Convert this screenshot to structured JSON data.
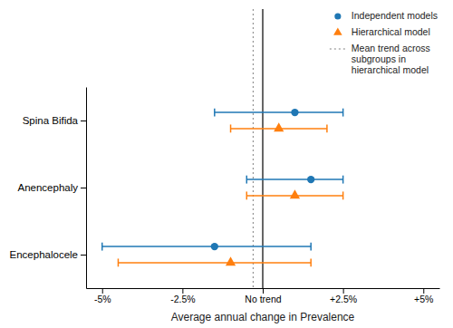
{
  "chart_data": {
    "type": "forest",
    "orientation": "horizontal",
    "categories": [
      "Spina Bifida",
      "Anencephaly",
      "Encephalocele"
    ],
    "series": [
      {
        "name": "Independent models",
        "marker": "circle",
        "values": [
          1.0,
          1.5,
          -1.5
        ],
        "ci_low": [
          -1.5,
          -0.5,
          -5.0
        ],
        "ci_high": [
          2.5,
          2.5,
          1.5
        ]
      },
      {
        "name": "Hierarchical model",
        "marker": "triangle",
        "values": [
          0.5,
          1.0,
          -1.0
        ],
        "ci_low": [
          -1.0,
          -0.5,
          -4.5
        ],
        "ci_high": [
          2.0,
          2.5,
          1.5
        ]
      }
    ],
    "vlines": [
      {
        "value": -0.3,
        "name": "Mean trend across\nsubgroups in\nhierarchical model",
        "line_style": "dotted",
        "color": "gray"
      },
      {
        "value": 0,
        "line_style": "solid",
        "color": "black"
      }
    ],
    "xlim": [
      -5.5,
      5.5
    ],
    "xticks": [
      {
        "value": -5,
        "label": "-5%"
      },
      {
        "value": -2.5,
        "label": "-2.5%"
      },
      {
        "value": 0,
        "label": "No trend"
      },
      {
        "value": 2.5,
        "label": "+2.5%"
      },
      {
        "value": 5,
        "label": "+5%"
      }
    ],
    "xlabel": "Average annual change in Prevalence",
    "legend": "upper right",
    "grid": false
  }
}
